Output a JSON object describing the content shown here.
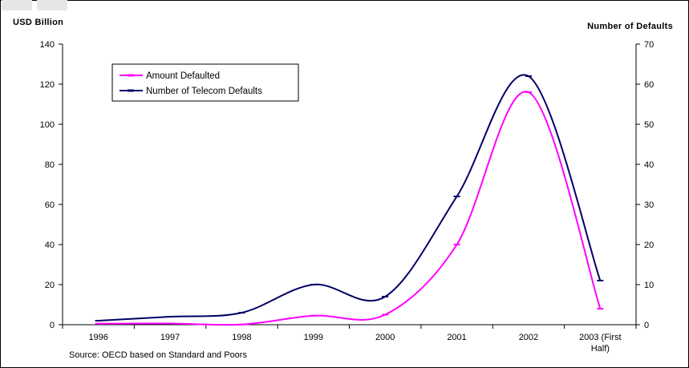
{
  "chart_data": {
    "type": "line",
    "categories": [
      "1996",
      "1997",
      "1998",
      "1999",
      "2000",
      "2001",
      "2002",
      "2003 (First Half)"
    ],
    "category_lines": [
      [
        "1996"
      ],
      [
        "1997"
      ],
      [
        "1998"
      ],
      [
        "1999"
      ],
      [
        "2000"
      ],
      [
        "2001"
      ],
      [
        "2002"
      ],
      [
        "2003 (First",
        "Half)"
      ]
    ],
    "series": [
      {
        "name": "Amount Defaulted",
        "axis": "left",
        "color": "#ff00ff",
        "values": [
          0.5,
          0.6,
          0.1,
          4.5,
          5,
          40,
          116,
          8
        ]
      },
      {
        "name": "Number of Telecom Defaults",
        "axis": "right",
        "color": "#000066",
        "values": [
          1,
          2,
          3,
          10,
          7,
          32,
          62,
          11
        ]
      }
    ],
    "y_left": {
      "label": "USD Billion",
      "min": 0,
      "max": 140,
      "step": 20
    },
    "y_right": {
      "label": "Number of Defaults",
      "min": 0,
      "max": 70,
      "step": 10
    },
    "legend_position": "top-left",
    "grid": false,
    "source_note": "Source: OECD based on Standard and Poors"
  }
}
